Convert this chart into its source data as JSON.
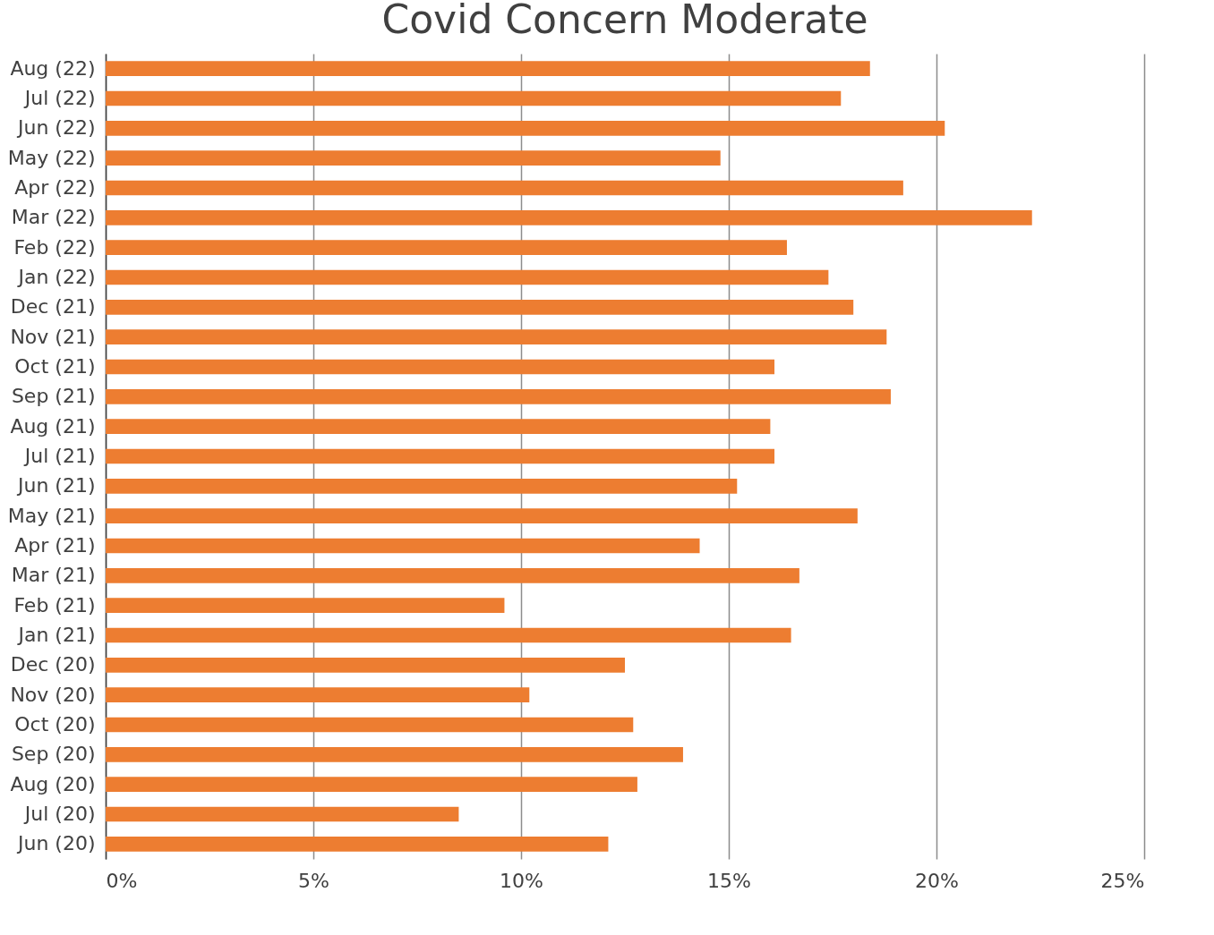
{
  "chart_data": {
    "type": "bar",
    "orientation": "horizontal",
    "title": "Covid Concern Moderate",
    "categories": [
      "Aug (22)",
      "Jul (22)",
      "Jun (22)",
      "May (22)",
      "Apr (22)",
      "Mar (22)",
      "Feb (22)",
      "Jan (22)",
      "Dec (21)",
      "Nov (21)",
      "Oct (21)",
      "Sep (21)",
      "Aug (21)",
      "Jul (21)",
      "Jun (21)",
      "May (21)",
      "Apr (21)",
      "Mar (21)",
      "Feb (21)",
      "Jan (21)",
      "Dec (20)",
      "Nov (20)",
      "Oct (20)",
      "Sep (20)",
      "Aug (20)",
      "Jul (20)",
      "Jun (20)"
    ],
    "values": [
      18.4,
      17.7,
      20.2,
      14.8,
      19.2,
      22.3,
      16.4,
      17.4,
      18.0,
      18.8,
      16.1,
      18.9,
      16.0,
      16.1,
      15.2,
      18.1,
      14.3,
      16.7,
      9.6,
      16.5,
      12.5,
      10.2,
      12.7,
      13.9,
      12.8,
      8.5,
      12.1
    ],
    "color": "#ed7d31",
    "xlim": [
      0,
      25
    ],
    "xticks": [
      {
        "value": 0,
        "label": "0%"
      },
      {
        "value": 5,
        "label": "5%"
      },
      {
        "value": 10,
        "label": "10%"
      },
      {
        "value": 15,
        "label": "15%"
      },
      {
        "value": 20,
        "label": "20%"
      },
      {
        "value": 25,
        "label": "25%"
      }
    ],
    "grid": "x"
  }
}
